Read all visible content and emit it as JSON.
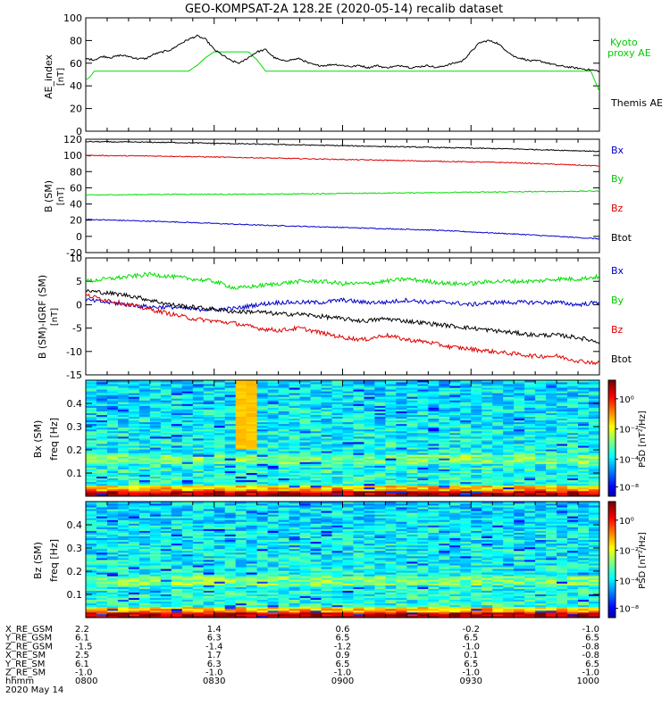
{
  "title": "GEO-KOMPSAT-2A 128.2E (2020-05-14) recalib dataset",
  "colors": {
    "black": "#000000",
    "red": "#dd0000",
    "green": "#00dd00",
    "blue": "#0000cc",
    "kyoto": "#00cc00"
  },
  "chart_data": [
    {
      "type": "line",
      "panel": "ae",
      "ylabel": "AE_index",
      "yunit": "[nT]",
      "ylim": [
        0,
        100
      ],
      "yticks": [
        "0",
        "20",
        "40",
        "60",
        "80",
        "100"
      ],
      "xlim": [
        0,
        120
      ],
      "series": [
        {
          "name": "Kyoto proxy AE",
          "legend_lines": [
            "Kyoto",
            "proxy AE"
          ],
          "color": "#00dd00",
          "x": [
            0,
            1,
            2,
            3,
            4,
            5,
            6,
            8,
            10,
            12,
            14,
            16,
            18,
            20,
            22,
            24,
            26,
            28,
            30,
            32,
            34,
            36,
            38,
            40,
            42,
            44,
            46,
            48,
            50,
            52,
            54,
            56,
            58,
            60,
            62,
            64,
            66,
            68,
            70,
            72,
            74,
            76,
            78,
            80,
            82,
            84,
            86,
            88,
            90,
            92,
            94,
            96,
            98,
            100,
            102,
            104,
            106,
            108,
            110,
            112,
            114,
            116,
            118,
            120
          ],
          "y": [
            45,
            48,
            53,
            53,
            53,
            53,
            53,
            53,
            53,
            53,
            53,
            53,
            53,
            53,
            53,
            53,
            58,
            65,
            70,
            70,
            70,
            70,
            70,
            63,
            53,
            53,
            53,
            53,
            53,
            53,
            53,
            53,
            53,
            53,
            53,
            53,
            53,
            53,
            53,
            53,
            53,
            53,
            53,
            53,
            53,
            53,
            53,
            53,
            53,
            53,
            53,
            53,
            53,
            53,
            53,
            53,
            53,
            53,
            53,
            53,
            53,
            53,
            53,
            35
          ]
        },
        {
          "name": "Themis AE",
          "color": "#000000",
          "x": [
            0,
            2,
            4,
            6,
            8,
            10,
            12,
            14,
            16,
            18,
            20,
            22,
            24,
            26,
            28,
            30,
            32,
            34,
            36,
            38,
            40,
            42,
            44,
            46,
            48,
            50,
            52,
            54,
            56,
            58,
            60,
            62,
            64,
            66,
            68,
            70,
            72,
            74,
            76,
            78,
            80,
            82,
            84,
            86,
            88,
            90,
            92,
            94,
            96,
            98,
            100,
            102,
            104,
            106,
            108,
            110,
            112,
            114,
            116,
            118,
            120
          ],
          "y": [
            64,
            63,
            66,
            65,
            67,
            66,
            64,
            64,
            68,
            70,
            72,
            77,
            81,
            84,
            81,
            72,
            67,
            62,
            60,
            65,
            70,
            72,
            65,
            62,
            63,
            64,
            60,
            58,
            58,
            59,
            58,
            57,
            58,
            56,
            58,
            56,
            57,
            58,
            56,
            57,
            58,
            56,
            58,
            60,
            62,
            70,
            78,
            80,
            78,
            72,
            66,
            64,
            62,
            62,
            60,
            58,
            57,
            56,
            55,
            54,
            53
          ]
        }
      ]
    },
    {
      "type": "line",
      "panel": "b",
      "ylabel": "B (SM)",
      "yunit": "[nT]",
      "ylim": [
        -20,
        120
      ],
      "yticks": [
        "-20",
        "0",
        "20",
        "40",
        "60",
        "80",
        "100",
        "120"
      ],
      "xlim": [
        0,
        120
      ],
      "series": [
        {
          "name": "Bx",
          "color": "#0000cc",
          "x": [
            0,
            20,
            40,
            60,
            80,
            100,
            120
          ],
          "y": [
            21,
            18,
            14,
            11,
            8,
            3,
            -3
          ]
        },
        {
          "name": "By",
          "color": "#00dd00",
          "x": [
            0,
            20,
            40,
            60,
            80,
            100,
            120
          ],
          "y": [
            51,
            52,
            52,
            53,
            54,
            55,
            56
          ]
        },
        {
          "name": "Bz",
          "color": "#dd0000",
          "x": [
            0,
            20,
            40,
            60,
            80,
            100,
            120
          ],
          "y": [
            100,
            99,
            97,
            95,
            93,
            91,
            87
          ]
        },
        {
          "name": "Btot",
          "color": "#000000",
          "x": [
            0,
            20,
            40,
            60,
            80,
            100,
            120
          ],
          "y": [
            117,
            116,
            114,
            112,
            110,
            108,
            105
          ]
        }
      ]
    },
    {
      "type": "line",
      "panel": "db",
      "ylabel": "B (SM)-IGRF (SM)",
      "yunit": "[nT]",
      "ylim": [
        -15,
        10
      ],
      "yticks": [
        "-15",
        "-10",
        "-5",
        "0",
        "5",
        "10"
      ],
      "xlim": [
        0,
        120
      ],
      "series": [
        {
          "name": "Bx",
          "color": "#0000cc",
          "x": [
            0,
            5,
            10,
            15,
            20,
            25,
            30,
            35,
            40,
            45,
            50,
            55,
            60,
            65,
            70,
            75,
            80,
            85,
            90,
            95,
            100,
            105,
            110,
            115,
            120
          ],
          "y": [
            1,
            0.5,
            0,
            -0.5,
            -0.5,
            -1,
            -1,
            -0.8,
            0,
            0.5,
            0.5,
            0.5,
            1,
            0.5,
            0.5,
            1,
            0.5,
            0.5,
            0,
            0.5,
            0.5,
            0.5,
            0.5,
            0,
            0.5
          ]
        },
        {
          "name": "By",
          "color": "#00dd00",
          "x": [
            0,
            5,
            10,
            15,
            20,
            25,
            30,
            35,
            40,
            45,
            50,
            55,
            60,
            65,
            70,
            75,
            80,
            85,
            90,
            95,
            100,
            105,
            110,
            115,
            120
          ],
          "y": [
            5,
            5.5,
            6,
            6.5,
            6,
            5.5,
            5,
            3.5,
            4,
            4.5,
            5,
            5,
            4.5,
            4.5,
            5,
            5.5,
            5,
            4.5,
            4.5,
            5,
            5,
            5,
            5.5,
            5.5,
            6
          ]
        },
        {
          "name": "Bz",
          "color": "#dd0000",
          "x": [
            0,
            5,
            10,
            15,
            20,
            25,
            30,
            35,
            40,
            45,
            50,
            55,
            60,
            65,
            70,
            75,
            80,
            85,
            90,
            95,
            100,
            105,
            110,
            115,
            120
          ],
          "y": [
            2,
            1,
            0,
            -1,
            -2,
            -3,
            -3.5,
            -4,
            -5,
            -5.5,
            -5,
            -6,
            -7,
            -7.5,
            -6.5,
            -7.5,
            -8,
            -9,
            -9.5,
            -10,
            -10.5,
            -11,
            -11,
            -12,
            -12.5
          ]
        },
        {
          "name": "Btot",
          "color": "#000000",
          "x": [
            0,
            5,
            10,
            15,
            20,
            25,
            30,
            35,
            40,
            45,
            50,
            55,
            60,
            65,
            70,
            75,
            80,
            85,
            90,
            95,
            100,
            105,
            110,
            115,
            120
          ],
          "y": [
            3,
            2.5,
            2,
            1,
            0,
            -0.5,
            -1,
            -1.5,
            -1.5,
            -2,
            -2,
            -2.5,
            -3,
            -3.5,
            -3,
            -3.5,
            -4,
            -4.5,
            -5,
            -5.5,
            -6,
            -6.5,
            -6.5,
            -7,
            -8
          ]
        }
      ]
    },
    {
      "type": "heatmap",
      "panel": "bx_psd",
      "ylabel": "Bx (SM)",
      "ylabel2": "freq [Hz]",
      "ylim": [
        0,
        0.5
      ],
      "yticks": [
        "0.1",
        "0.2",
        "0.3",
        "0.4"
      ],
      "xlim": [
        0,
        120
      ],
      "bright_burst_x": [
        36,
        40
      ]
    },
    {
      "type": "heatmap",
      "panel": "bz_psd",
      "ylabel": "Bz (SM)",
      "ylabel2": "freq [Hz]",
      "ylim": [
        0,
        0.5
      ],
      "yticks": [
        "0.1",
        "0.2",
        "0.3",
        "0.4"
      ],
      "xlim": [
        0,
        120
      ]
    }
  ],
  "colorbar": {
    "label": "PSD [nT²/Hz]",
    "ticks": [
      "10⁰",
      "10⁻²",
      "10⁻⁴",
      "10⁻⁸"
    ]
  },
  "footer": {
    "labels": [
      "X_RE_GSM",
      "Y_RE_GSM",
      "Z_RE_GSM",
      "X_RE_SM",
      "Y_RE_SM",
      "Z_RE_SM",
      "hhmm",
      "2020 May 14"
    ],
    "columns": [
      {
        "values": [
          "2.2",
          "6.1",
          "-1.5",
          "2.5",
          "6.1",
          "-1.0",
          "0800"
        ]
      },
      {
        "values": [
          "1.4",
          "6.3",
          "-1.4",
          "1.7",
          "6.3",
          "-1.0",
          "0830"
        ]
      },
      {
        "values": [
          "0.6",
          "6.5",
          "-1.2",
          "0.9",
          "6.5",
          "-1.0",
          "0900"
        ]
      },
      {
        "values": [
          "-0.2",
          "6.5",
          "-1.0",
          "0.1",
          "6.5",
          "-1.0",
          "0930"
        ]
      },
      {
        "values": [
          "-1.0",
          "6.5",
          "-0.8",
          "-0.8",
          "6.5",
          "-1.0",
          "1000"
        ]
      }
    ]
  }
}
